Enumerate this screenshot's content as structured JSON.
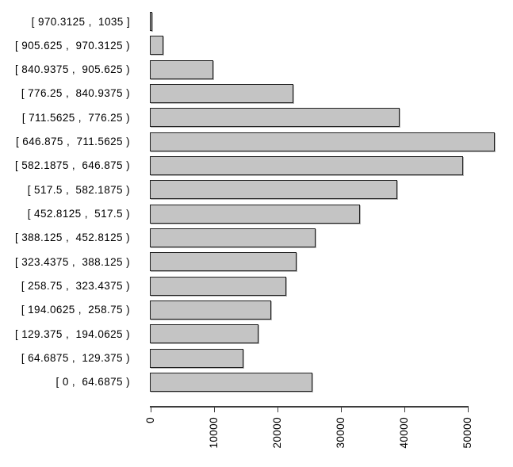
{
  "chart_data": {
    "type": "bar",
    "orientation": "horizontal",
    "title": "",
    "xlabel": "",
    "ylabel": "",
    "categories": [
      "[ 970.3125 ,  1035 ]",
      "[ 905.625 ,  970.3125 )",
      "[ 840.9375 ,  905.625 )",
      "[ 776.25 ,  840.9375 )",
      "[ 711.5625 ,  776.25 )",
      "[ 646.875 ,  711.5625 )",
      "[ 582.1875 ,  646.875 )",
      "[ 517.5 ,  582.1875 )",
      "[ 452.8125 ,  517.5 )",
      "[ 388.125 ,  452.8125 )",
      "[ 323.4375 ,  388.125 )",
      "[ 258.75 ,  323.4375 )",
      "[ 194.0625 ,  258.75 )",
      "[ 129.375 ,  194.0625 )",
      "[ 64.6875 ,  129.375 )",
      "[ 0 ,  64.6875 )"
    ],
    "values": [
      400,
      2100,
      9950,
      22700,
      39400,
      54500,
      49400,
      39000,
      33200,
      26200,
      23200,
      21500,
      19200,
      17100,
      14800,
      25600
    ],
    "x_ticks": [
      0,
      10000,
      20000,
      30000,
      40000,
      50000
    ],
    "x_tick_labels": [
      "0",
      "10000",
      "20000",
      "30000",
      "40000",
      "50000"
    ],
    "xlim": [
      0,
      50000
    ],
    "grid": false,
    "legend": null,
    "bar_fill": "#c4c4c4",
    "bar_border": "#1f1f1f",
    "axis_color": "#3d3d3d",
    "text_color": "#000000",
    "background": "#ffffff"
  }
}
